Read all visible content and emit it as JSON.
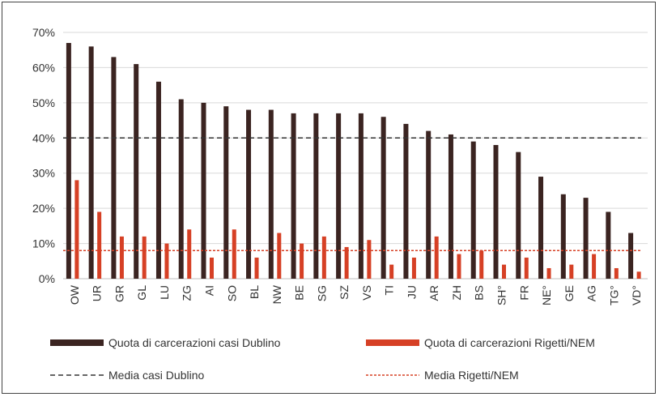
{
  "chart_data": {
    "type": "bar",
    "categories": [
      "OW",
      "UR",
      "GR",
      "GL",
      "LU",
      "ZG",
      "AI",
      "SO",
      "BL",
      "NW",
      "BE",
      "SG",
      "SZ",
      "VS",
      "TI",
      "JU",
      "AR",
      "ZH",
      "BS",
      "SH°",
      "FR",
      "NE°",
      "GE",
      "AG",
      "TG°",
      "VD°"
    ],
    "series": [
      {
        "name": "Quota di carcerazioni casi Dublino",
        "color": "#3b2421",
        "values": [
          0.67,
          0.66,
          0.63,
          0.61,
          0.56,
          0.51,
          0.5,
          0.49,
          0.48,
          0.48,
          0.47,
          0.47,
          0.47,
          0.47,
          0.46,
          0.44,
          0.42,
          0.41,
          0.39,
          0.38,
          0.36,
          0.29,
          0.24,
          0.23,
          0.19,
          0.13
        ]
      },
      {
        "name": "Quota di carcerazioni Rigetti/NEM",
        "color": "#d64025",
        "values": [
          0.28,
          0.19,
          0.12,
          0.12,
          0.1,
          0.14,
          0.06,
          0.14,
          0.06,
          0.13,
          0.1,
          0.12,
          0.09,
          0.11,
          0.04,
          0.06,
          0.12,
          0.07,
          0.08,
          0.04,
          0.06,
          0.03,
          0.04,
          0.07,
          0.03,
          0.02
        ]
      }
    ],
    "reference_lines": [
      {
        "name": "Media casi Dublino",
        "value": 0.4,
        "color": "#333333",
        "style": "dashed"
      },
      {
        "name": "Media Rigetti/NEM",
        "value": 0.08,
        "color": "#d64025",
        "style": "dotted"
      }
    ],
    "ylim": [
      0,
      0.7
    ],
    "yticks": [
      "0%",
      "10%",
      "20%",
      "30%",
      "40%",
      "50%",
      "60%",
      "70%"
    ],
    "grid": true,
    "legend_position": "bottom",
    "title": "",
    "xlabel": "",
    "ylabel": ""
  }
}
